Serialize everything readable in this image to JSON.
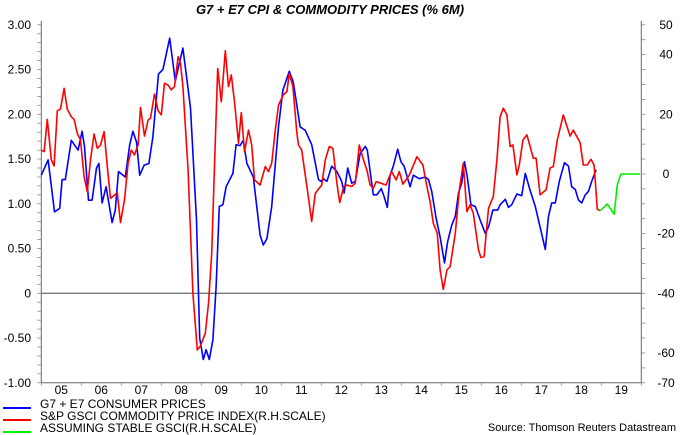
{
  "chart_data": {
    "type": "line",
    "title": "G7 + E7 CPI & COMMODITY PRICES (% 6M)",
    "x_tick_labels": [
      "05",
      "06",
      "07",
      "08",
      "09",
      "10",
      "11",
      "12",
      "13",
      "14",
      "15",
      "16",
      "17",
      "18",
      "19"
    ],
    "xlim": [
      2005,
      2020
    ],
    "left_axis": {
      "ylim": [
        -1.0,
        3.0
      ],
      "tick_labels": [
        "3.00",
        "2.50",
        "2.00",
        "1.50",
        "1.00",
        "0.50",
        "0",
        "-0.50",
        "-1.00"
      ],
      "tick_values": [
        3,
        2.5,
        2,
        1.5,
        1,
        0.5,
        0,
        -0.5,
        -1
      ]
    },
    "right_axis": {
      "ylim": [
        -70,
        50
      ],
      "tick_labels": [
        "50",
        "40",
        "20",
        "0",
        "-20",
        "-40",
        "-60",
        "-70"
      ],
      "tick_values": [
        50,
        40,
        20,
        0,
        -20,
        -40,
        -60,
        -70
      ]
    },
    "zero_line_left": 0,
    "grid": false,
    "legend_placement": "bottom-left",
    "source": "Source: Thomson Reuters Datastream",
    "series": [
      {
        "name": "G7 + E7 CONSUMER PRICES",
        "axis": "left",
        "color": "#0000ff",
        "points": [
          [
            2005.0,
            1.32
          ],
          [
            2005.17,
            1.49
          ],
          [
            2005.33,
            0.91
          ],
          [
            2005.46,
            0.95
          ],
          [
            2005.52,
            1.27
          ],
          [
            2005.6,
            1.27
          ],
          [
            2005.75,
            1.71
          ],
          [
            2005.92,
            1.6
          ],
          [
            2006.02,
            1.81
          ],
          [
            2006.08,
            1.64
          ],
          [
            2006.18,
            1.04
          ],
          [
            2006.27,
            1.04
          ],
          [
            2006.38,
            1.4
          ],
          [
            2006.44,
            1.45
          ],
          [
            2006.52,
            1.01
          ],
          [
            2006.62,
            1.19
          ],
          [
            2006.77,
            0.79
          ],
          [
            2006.85,
            0.93
          ],
          [
            2006.93,
            1.36
          ],
          [
            2007.1,
            1.3
          ],
          [
            2007.21,
            1.66
          ],
          [
            2007.29,
            1.81
          ],
          [
            2007.38,
            1.69
          ],
          [
            2007.46,
            1.32
          ],
          [
            2007.57,
            1.43
          ],
          [
            2007.69,
            1.45
          ],
          [
            2007.79,
            1.75
          ],
          [
            2007.93,
            2.45
          ],
          [
            2008.04,
            2.5
          ],
          [
            2008.21,
            2.85
          ],
          [
            2008.35,
            2.37
          ],
          [
            2008.43,
            2.53
          ],
          [
            2008.54,
            2.74
          ],
          [
            2008.73,
            2.07
          ],
          [
            2008.88,
            0.82
          ],
          [
            2008.96,
            -0.5
          ],
          [
            2009.05,
            -0.74
          ],
          [
            2009.12,
            -0.63
          ],
          [
            2009.2,
            -0.74
          ],
          [
            2009.29,
            -0.52
          ],
          [
            2009.37,
            0.07
          ],
          [
            2009.45,
            0.97
          ],
          [
            2009.54,
            0.99
          ],
          [
            2009.62,
            1.19
          ],
          [
            2009.79,
            1.34
          ],
          [
            2009.87,
            1.66
          ],
          [
            2009.97,
            1.65
          ],
          [
            2010.05,
            1.71
          ],
          [
            2010.14,
            1.45
          ],
          [
            2010.3,
            1.3
          ],
          [
            2010.47,
            0.65
          ],
          [
            2010.55,
            0.54
          ],
          [
            2010.64,
            0.61
          ],
          [
            2010.76,
            0.97
          ],
          [
            2010.93,
            1.86
          ],
          [
            2011.04,
            2.27
          ],
          [
            2011.2,
            2.48
          ],
          [
            2011.3,
            2.36
          ],
          [
            2011.47,
            1.86
          ],
          [
            2011.6,
            1.82
          ],
          [
            2011.76,
            1.66
          ],
          [
            2011.93,
            1.27
          ],
          [
            2011.99,
            1.25
          ],
          [
            2012.05,
            1.28
          ],
          [
            2012.14,
            1.25
          ],
          [
            2012.26,
            1.42
          ],
          [
            2012.39,
            1.36
          ],
          [
            2012.51,
            1.25
          ],
          [
            2012.57,
            1.12
          ],
          [
            2012.66,
            1.4
          ],
          [
            2012.76,
            1.23
          ],
          [
            2012.85,
            1.25
          ],
          [
            2012.97,
            1.56
          ],
          [
            2013.1,
            1.64
          ],
          [
            2013.15,
            1.6
          ],
          [
            2013.3,
            1.1
          ],
          [
            2013.39,
            1.1
          ],
          [
            2013.5,
            1.17
          ],
          [
            2013.57,
            1.08
          ],
          [
            2013.65,
            0.96
          ],
          [
            2013.72,
            1.32
          ],
          [
            2013.8,
            1.42
          ],
          [
            2013.91,
            1.61
          ],
          [
            2013.99,
            1.47
          ],
          [
            2014.07,
            1.42
          ],
          [
            2014.22,
            1.19
          ],
          [
            2014.3,
            1.32
          ],
          [
            2014.45,
            1.28
          ],
          [
            2014.6,
            1.3
          ],
          [
            2014.68,
            1.27
          ],
          [
            2014.76,
            1.14
          ],
          [
            2014.87,
            0.84
          ],
          [
            2014.97,
            0.63
          ],
          [
            2015.08,
            0.34
          ],
          [
            2015.16,
            0.58
          ],
          [
            2015.26,
            0.76
          ],
          [
            2015.35,
            0.86
          ],
          [
            2015.43,
            1.12
          ],
          [
            2015.51,
            1.23
          ],
          [
            2015.58,
            1.47
          ],
          [
            2015.65,
            1.3
          ],
          [
            2015.74,
            0.99
          ],
          [
            2015.85,
            0.97
          ],
          [
            2015.97,
            0.82
          ],
          [
            2016.1,
            0.67
          ],
          [
            2016.18,
            0.74
          ],
          [
            2016.29,
            0.93
          ],
          [
            2016.41,
            0.93
          ],
          [
            2016.47,
            0.99
          ],
          [
            2016.6,
            1.05
          ],
          [
            2016.68,
            0.96
          ],
          [
            2016.76,
            0.99
          ],
          [
            2016.89,
            1.11
          ],
          [
            2017.01,
            1.09
          ],
          [
            2017.1,
            1.34
          ],
          [
            2017.22,
            1.15
          ],
          [
            2017.35,
            0.97
          ],
          [
            2017.47,
            0.74
          ],
          [
            2017.6,
            0.49
          ],
          [
            2017.68,
            0.86
          ],
          [
            2017.76,
            1.01
          ],
          [
            2017.85,
            1.01
          ],
          [
            2017.95,
            1.25
          ],
          [
            2018.08,
            1.46
          ],
          [
            2018.18,
            1.42
          ],
          [
            2018.26,
            1.19
          ],
          [
            2018.35,
            1.16
          ],
          [
            2018.43,
            1.04
          ],
          [
            2018.51,
            1.01
          ],
          [
            2018.6,
            1.1
          ],
          [
            2018.68,
            1.14
          ],
          [
            2018.76,
            1.25
          ],
          [
            2018.87,
            1.38
          ]
        ]
      },
      {
        "name": "S&P GSCI COMMODITY PRICE INDEX(R.H.SCALE)",
        "axis": "right",
        "color": "#ff0000",
        "points": [
          [
            2005.0,
            8.0
          ],
          [
            2005.07,
            7.5
          ],
          [
            2005.15,
            18.3
          ],
          [
            2005.25,
            4.7
          ],
          [
            2005.32,
            2.7
          ],
          [
            2005.4,
            21.2
          ],
          [
            2005.48,
            21.7
          ],
          [
            2005.57,
            28.7
          ],
          [
            2005.65,
            21.7
          ],
          [
            2005.75,
            19.2
          ],
          [
            2005.82,
            18.3
          ],
          [
            2005.9,
            13.6
          ],
          [
            2005.98,
            11.4
          ],
          [
            2006.07,
            -0.9
          ],
          [
            2006.15,
            -5.9
          ],
          [
            2006.23,
            4.7
          ],
          [
            2006.32,
            13.4
          ],
          [
            2006.4,
            8.6
          ],
          [
            2006.48,
            9.7
          ],
          [
            2006.57,
            14.2
          ],
          [
            2006.65,
            2.5
          ],
          [
            2006.73,
            -8.2
          ],
          [
            2006.9,
            -6.3
          ],
          [
            2006.98,
            -16.3
          ],
          [
            2007.08,
            -8.7
          ],
          [
            2007.17,
            3.6
          ],
          [
            2007.25,
            8.0
          ],
          [
            2007.33,
            6.4
          ],
          [
            2007.42,
            9.7
          ],
          [
            2007.48,
            22.3
          ],
          [
            2007.58,
            12.7
          ],
          [
            2007.67,
            18.1
          ],
          [
            2007.73,
            18.7
          ],
          [
            2007.83,
            26.8
          ],
          [
            2007.92,
            21.2
          ],
          [
            2008.0,
            19.8
          ],
          [
            2008.08,
            30.4
          ],
          [
            2008.17,
            29.8
          ],
          [
            2008.25,
            28.2
          ],
          [
            2008.33,
            29.3
          ],
          [
            2008.42,
            39.3
          ],
          [
            2008.48,
            37.1
          ],
          [
            2008.54,
            29.3
          ],
          [
            2008.67,
            1.3
          ],
          [
            2008.79,
            -40
          ],
          [
            2008.9,
            -59
          ],
          [
            2008.98,
            -57.6
          ],
          [
            2009.1,
            -53.4
          ],
          [
            2009.18,
            -43.4
          ],
          [
            2009.26,
            -26.6
          ],
          [
            2009.34,
            6.9
          ],
          [
            2009.41,
            35.4
          ],
          [
            2009.5,
            24.2
          ],
          [
            2009.6,
            41.3
          ],
          [
            2009.68,
            29.3
          ],
          [
            2009.75,
            33.2
          ],
          [
            2009.83,
            24.2
          ],
          [
            2009.93,
            10.3
          ],
          [
            2010.0,
            20.6
          ],
          [
            2010.08,
            7.5
          ],
          [
            2010.18,
            14.7
          ],
          [
            2010.26,
            9.7
          ],
          [
            2010.33,
            -2.0
          ],
          [
            2010.47,
            -3.7
          ],
          [
            2010.6,
            2.5
          ],
          [
            2010.68,
            0.8
          ],
          [
            2010.76,
            3.6
          ],
          [
            2010.85,
            14.7
          ],
          [
            2010.93,
            23.1
          ],
          [
            2011.05,
            26.5
          ],
          [
            2011.14,
            27.6
          ],
          [
            2011.2,
            33.7
          ],
          [
            2011.29,
            29.3
          ],
          [
            2011.39,
            13.6
          ],
          [
            2011.43,
            9.7
          ],
          [
            2011.51,
            8.0
          ],
          [
            2011.64,
            -4.2
          ],
          [
            2011.76,
            -15.9
          ],
          [
            2011.85,
            -6.5
          ],
          [
            2012.01,
            -3.7
          ],
          [
            2012.1,
            4.7
          ],
          [
            2012.2,
            9.2
          ],
          [
            2012.29,
            8.6
          ],
          [
            2012.39,
            -3.1
          ],
          [
            2012.46,
            -9.6
          ],
          [
            2012.56,
            -4.2
          ],
          [
            2012.64,
            -3.7
          ],
          [
            2012.76,
            -4.2
          ],
          [
            2012.85,
            -3.1
          ],
          [
            2012.95,
            9.7
          ],
          [
            2013.03,
            5.8
          ],
          [
            2013.14,
            1.3
          ],
          [
            2013.22,
            -3.7
          ],
          [
            2013.3,
            -4.8
          ],
          [
            2013.37,
            -2.6
          ],
          [
            2013.49,
            -3.1
          ],
          [
            2013.62,
            -3.7
          ],
          [
            2013.7,
            -0.9
          ],
          [
            2013.76,
            0.8
          ],
          [
            2013.87,
            -2.0
          ],
          [
            2013.95,
            0.8
          ],
          [
            2014.04,
            -3.4
          ],
          [
            2014.2,
            -0.4
          ],
          [
            2014.39,
            5.8
          ],
          [
            2014.54,
            3.0
          ],
          [
            2014.64,
            -4.2
          ],
          [
            2014.72,
            -9.3
          ],
          [
            2014.8,
            -16.5
          ],
          [
            2014.9,
            -19.9
          ],
          [
            2014.97,
            -32.2
          ],
          [
            2015.05,
            -38.7
          ],
          [
            2015.14,
            -32.2
          ],
          [
            2015.22,
            -31.1
          ],
          [
            2015.35,
            -19.9
          ],
          [
            2015.45,
            -5.4
          ],
          [
            2015.55,
            3.6
          ],
          [
            2015.64,
            -12.6
          ],
          [
            2015.72,
            -10.4
          ],
          [
            2015.8,
            -13.2
          ],
          [
            2015.93,
            -25.5
          ],
          [
            2015.99,
            -28.0
          ],
          [
            2016.07,
            -27.7
          ],
          [
            2016.18,
            -11.5
          ],
          [
            2016.3,
            -7.6
          ],
          [
            2016.39,
            4.7
          ],
          [
            2016.47,
            19.2
          ],
          [
            2016.55,
            22.0
          ],
          [
            2016.64,
            19.8
          ],
          [
            2016.72,
            9.2
          ],
          [
            2016.79,
            9.7
          ],
          [
            2016.89,
            -0.3
          ],
          [
            2016.95,
            3.0
          ],
          [
            2017.04,
            11.4
          ],
          [
            2017.14,
            13.1
          ],
          [
            2017.22,
            9.2
          ],
          [
            2017.3,
            5.3
          ],
          [
            2017.37,
            5.3
          ],
          [
            2017.47,
            -7.0
          ],
          [
            2017.62,
            -5.3
          ],
          [
            2017.72,
            2.0
          ],
          [
            2017.8,
            2.5
          ],
          [
            2017.9,
            11.4
          ],
          [
            2018.05,
            19.8
          ],
          [
            2018.22,
            12.7
          ],
          [
            2018.3,
            14.7
          ],
          [
            2018.47,
            10.5
          ],
          [
            2018.55,
            3.0
          ],
          [
            2018.65,
            3.0
          ],
          [
            2018.74,
            4.9
          ],
          [
            2018.82,
            3.0
          ],
          [
            2018.9,
            -11.8
          ],
          [
            2018.97,
            -12.3
          ]
        ]
      },
      {
        "name": "ASSUMING STABLE GSCI(R.H.SCALE)",
        "axis": "right",
        "color": "#00ee00",
        "points": [
          [
            2018.97,
            -12.3
          ],
          [
            2019.15,
            -10.1
          ],
          [
            2019.32,
            -13.5
          ],
          [
            2019.4,
            -3.7
          ],
          [
            2019.49,
            0
          ],
          [
            2019.97,
            0
          ]
        ]
      }
    ]
  }
}
